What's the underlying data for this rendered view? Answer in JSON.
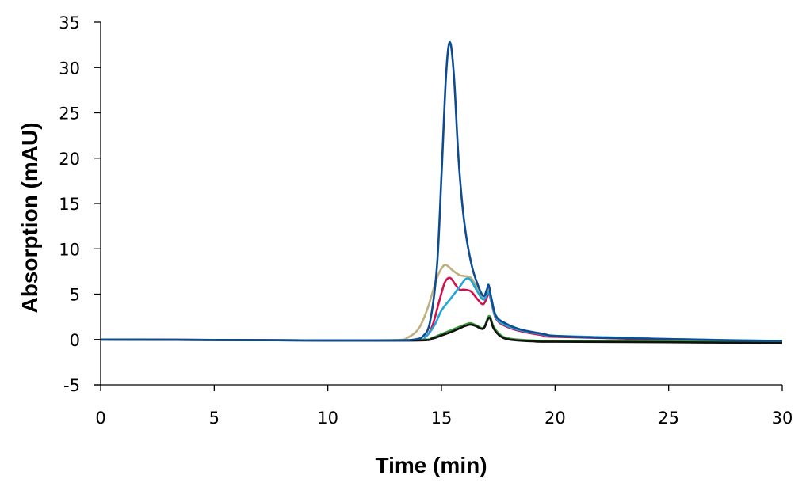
{
  "chart_data": {
    "type": "line",
    "title": "",
    "xlabel": "Time (min)",
    "ylabel": "Absorption (mAU)",
    "xlim": [
      0,
      30
    ],
    "ylim": [
      -5,
      35
    ],
    "xticks": [
      0,
      5,
      10,
      15,
      20,
      25,
      30
    ],
    "yticks": [
      -5,
      0,
      5,
      10,
      15,
      20,
      25,
      30,
      35
    ],
    "grid": false,
    "legend": null,
    "series": [
      {
        "name": "series-dark-blue",
        "color": "#0E4C92",
        "points": [
          [
            0,
            0
          ],
          [
            5,
            -0.05
          ],
          [
            10,
            -0.1
          ],
          [
            13,
            -0.1
          ],
          [
            13.8,
            0
          ],
          [
            14.2,
            0.4
          ],
          [
            14.5,
            2
          ],
          [
            14.8,
            8
          ],
          [
            15.0,
            18
          ],
          [
            15.2,
            29
          ],
          [
            15.37,
            32.8
          ],
          [
            15.55,
            29
          ],
          [
            15.75,
            20
          ],
          [
            16.0,
            13
          ],
          [
            16.3,
            8.5
          ],
          [
            16.6,
            6
          ],
          [
            16.85,
            4.8
          ],
          [
            17.0,
            5.5
          ],
          [
            17.08,
            6.0
          ],
          [
            17.2,
            4.5
          ],
          [
            17.4,
            2.6
          ],
          [
            17.8,
            1.8
          ],
          [
            18.5,
            1.1
          ],
          [
            19.5,
            0.6
          ],
          [
            20,
            0.4
          ],
          [
            22,
            0.2
          ],
          [
            25,
            0.05
          ],
          [
            28,
            -0.1
          ],
          [
            30,
            -0.15
          ]
        ]
      },
      {
        "name": "series-tan",
        "color": "#BFAF7E",
        "points": [
          [
            0,
            0
          ],
          [
            10,
            -0.1
          ],
          [
            13,
            -0.05
          ],
          [
            13.5,
            0.2
          ],
          [
            14,
            1.2
          ],
          [
            14.4,
            3.5
          ],
          [
            14.8,
            6.8
          ],
          [
            15.05,
            8.0
          ],
          [
            15.22,
            8.2
          ],
          [
            15.5,
            7.6
          ],
          [
            15.8,
            7.1
          ],
          [
            16.0,
            7.0
          ],
          [
            16.3,
            6.8
          ],
          [
            16.6,
            5.6
          ],
          [
            16.85,
            4.6
          ],
          [
            17.08,
            5.4
          ],
          [
            17.2,
            4.3
          ],
          [
            17.4,
            2.4
          ],
          [
            17.8,
            1.6
          ],
          [
            18.5,
            1.0
          ],
          [
            19.5,
            0.5
          ],
          [
            20,
            0.35
          ],
          [
            25,
            0.0
          ],
          [
            30,
            -0.2
          ]
        ]
      },
      {
        "name": "series-crimson",
        "color": "#D0114E",
        "points": [
          [
            0,
            0
          ],
          [
            10,
            -0.1
          ],
          [
            13.8,
            -0.05
          ],
          [
            14.3,
            0.3
          ],
          [
            14.6,
            1.5
          ],
          [
            14.9,
            4.2
          ],
          [
            15.15,
            6.3
          ],
          [
            15.38,
            6.8
          ],
          [
            15.6,
            6.1
          ],
          [
            15.8,
            5.5
          ],
          [
            16.0,
            5.5
          ],
          [
            16.3,
            5.3
          ],
          [
            16.6,
            4.4
          ],
          [
            16.85,
            3.9
          ],
          [
            17.08,
            5.0
          ],
          [
            17.2,
            4.1
          ],
          [
            17.4,
            2.3
          ],
          [
            17.8,
            1.5
          ],
          [
            18.5,
            0.9
          ],
          [
            19.5,
            0.45
          ],
          [
            20,
            0.3
          ],
          [
            25,
            0.0
          ],
          [
            30,
            -0.2
          ]
        ]
      },
      {
        "name": "series-cyan",
        "color": "#22A7D8",
        "points": [
          [
            0,
            0
          ],
          [
            10,
            -0.1
          ],
          [
            13.8,
            -0.05
          ],
          [
            14.3,
            0.3
          ],
          [
            14.7,
            1.6
          ],
          [
            15.0,
            3.2
          ],
          [
            15.4,
            4.5
          ],
          [
            15.8,
            5.8
          ],
          [
            16.08,
            6.7
          ],
          [
            16.3,
            6.5
          ],
          [
            16.6,
            5.2
          ],
          [
            16.85,
            4.4
          ],
          [
            17.08,
            5.2
          ],
          [
            17.2,
            4.2
          ],
          [
            17.4,
            2.4
          ],
          [
            17.8,
            1.6
          ],
          [
            18.5,
            1.0
          ],
          [
            19.5,
            0.55
          ],
          [
            20,
            0.4
          ],
          [
            23.8,
            0.15
          ],
          [
            25,
            0.05
          ],
          [
            30,
            -0.15
          ]
        ]
      },
      {
        "name": "series-green",
        "color": "#3A9A3A",
        "points": [
          [
            0,
            0
          ],
          [
            10,
            -0.1
          ],
          [
            14.0,
            -0.05
          ],
          [
            14.6,
            0.2
          ],
          [
            15.0,
            0.6
          ],
          [
            15.5,
            1.1
          ],
          [
            16.0,
            1.6
          ],
          [
            16.27,
            1.8
          ],
          [
            16.5,
            1.6
          ],
          [
            16.85,
            1.3
          ],
          [
            17.1,
            2.6
          ],
          [
            17.3,
            1.4
          ],
          [
            17.6,
            0.5
          ],
          [
            18.0,
            0.1
          ],
          [
            19,
            -0.1
          ],
          [
            20,
            -0.15
          ],
          [
            25,
            -0.2
          ],
          [
            30,
            -0.3
          ]
        ]
      },
      {
        "name": "series-black",
        "color": "#111111",
        "points": [
          [
            0,
            0
          ],
          [
            10,
            -0.1
          ],
          [
            14.0,
            -0.1
          ],
          [
            14.6,
            0.1
          ],
          [
            15.0,
            0.45
          ],
          [
            15.5,
            0.9
          ],
          [
            16.0,
            1.45
          ],
          [
            16.27,
            1.65
          ],
          [
            16.5,
            1.5
          ],
          [
            16.85,
            1.2
          ],
          [
            17.1,
            2.4
          ],
          [
            17.3,
            1.2
          ],
          [
            17.6,
            0.35
          ],
          [
            18.0,
            0.0
          ],
          [
            19,
            -0.2
          ],
          [
            20,
            -0.25
          ],
          [
            25,
            -0.3
          ],
          [
            30,
            -0.4
          ]
        ]
      }
    ]
  }
}
